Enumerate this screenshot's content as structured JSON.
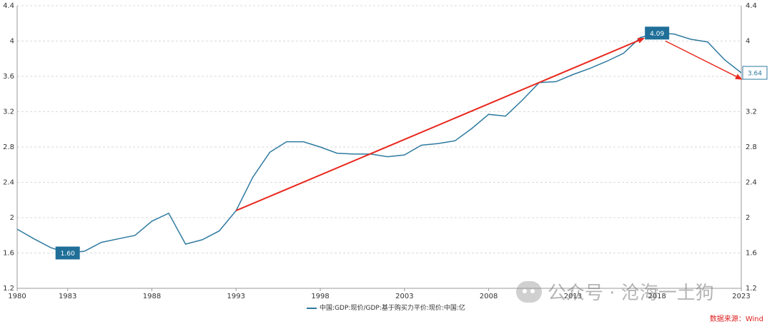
{
  "chart_data": {
    "type": "line",
    "title": "",
    "xlabel": "",
    "ylabel": "",
    "xlim": [
      1980,
      2023
    ],
    "ylim": [
      1.2,
      4.4
    ],
    "y_ticks": [
      "1.2",
      "1.6",
      "2",
      "2.4",
      "2.8",
      "3.2",
      "3.6",
      "4",
      "4.4"
    ],
    "x_ticks": [
      "1980",
      "1983",
      "1988",
      "1993",
      "1998",
      "2003",
      "2008",
      "2013",
      "2018",
      "2023"
    ],
    "grid": "horizontal-dashed",
    "right_axis": true,
    "legend_position": "bottom-center",
    "series": [
      {
        "name": "中国:GDP:现价/GDP:基于购买力平价:现价:中国:亿",
        "color": "#2f7aa0",
        "x": [
          1980,
          1981,
          1982,
          1983,
          1984,
          1985,
          1986,
          1987,
          1988,
          1989,
          1990,
          1991,
          1992,
          1993,
          1994,
          1995,
          1996,
          1997,
          1998,
          1999,
          2000,
          2001,
          2002,
          2003,
          2004,
          2005,
          2006,
          2007,
          2008,
          2009,
          2010,
          2011,
          2012,
          2013,
          2014,
          2015,
          2016,
          2017,
          2018,
          2019,
          2020,
          2021,
          2022,
          2023
        ],
        "values": [
          1.87,
          1.76,
          1.66,
          1.6,
          1.62,
          1.72,
          1.76,
          1.8,
          1.96,
          2.05,
          1.7,
          1.75,
          1.85,
          2.08,
          2.46,
          2.74,
          2.86,
          2.86,
          2.8,
          2.73,
          2.72,
          2.72,
          2.69,
          2.71,
          2.82,
          2.84,
          2.87,
          3.01,
          3.17,
          3.15,
          3.33,
          3.53,
          3.54,
          3.62,
          3.69,
          3.77,
          3.86,
          4.04,
          4.09,
          4.08,
          4.02,
          3.99,
          3.79,
          3.64
        ]
      }
    ],
    "annotations": [
      {
        "label": "1.60",
        "x": 1983,
        "y": 1.6,
        "style": "filled"
      },
      {
        "label": "4.09",
        "x": 2018,
        "y": 4.09,
        "style": "filled"
      },
      {
        "label": "3.64",
        "x": 2023,
        "y": 3.64,
        "style": "outline"
      }
    ],
    "arrows": [
      {
        "from": [
          1993,
          2.08
        ],
        "to": [
          2017.2,
          4.03
        ],
        "color": "#e8281e"
      },
      {
        "from": [
          2018.5,
          4.0
        ],
        "to": [
          2023,
          3.57
        ],
        "color": "#e8281e"
      }
    ]
  },
  "legend": {
    "label": "中国:GDP:现价/GDP:基于购买力平价:现价:中国:亿"
  },
  "source_text": "数据来源：Wind",
  "watermark": {
    "text": "公众号 · 沧海一土狗",
    "icon": "wechat-icon"
  }
}
